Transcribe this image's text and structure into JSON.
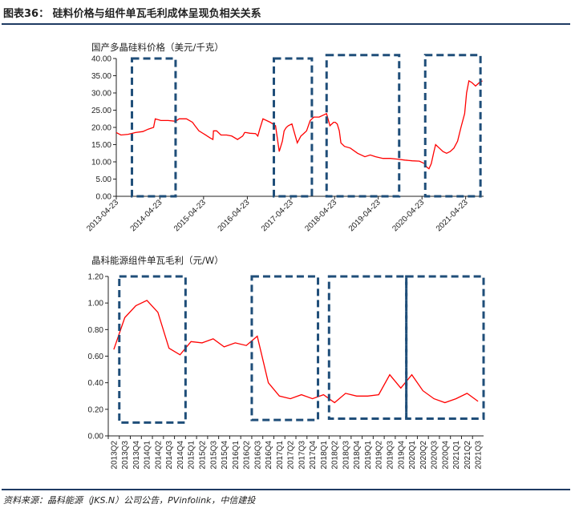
{
  "figure": {
    "title": "图表36：  硅料价格与组件单瓦毛利成体呈现负相关关系",
    "source": "资料来源：晶科能源（JKS.N）公司公告，PVinfolink，中信建投",
    "highlight_color": "#1f4e79",
    "line_color": "#ff0000"
  },
  "chart_data": [
    {
      "type": "line",
      "title": "国产多晶硅料价格（美元/千克）",
      "ylim": [
        0,
        40
      ],
      "y_ticks": [
        "0.00",
        "5.00",
        "10.00",
        "15.00",
        "20.00",
        "25.00",
        "30.00",
        "35.00",
        "40.00"
      ],
      "x_ticks": [
        "2013-04-23",
        "2014-04-23",
        "2015-04-23",
        "2016-04-23",
        "2017-04-23",
        "2018-04-23",
        "2019-04-23",
        "2020-04-23",
        "2021-04-23"
      ],
      "series": [
        {
          "x": [
            "2013-04-23",
            "2013-06-01",
            "2013-08-01",
            "2013-10-01",
            "2013-12-01",
            "2014-01-15",
            "2014-03-01",
            "2014-03-15",
            "2014-05-01",
            "2014-07-01",
            "2014-09-01",
            "2014-10-01",
            "2014-12-01",
            "2015-01-20",
            "2015-02-10",
            "2015-03-15",
            "2015-05-01",
            "2015-06-15",
            "2015-07-10",
            "2015-07-15",
            "2015-08-10",
            "2015-09-15",
            "2015-11-01",
            "2015-12-15",
            "2016-02-01",
            "2016-03-15",
            "2016-04-01",
            "2016-04-10",
            "2016-05-15",
            "2016-07-01",
            "2016-07-20",
            "2016-08-05",
            "2016-09-01",
            "2016-11-01",
            "2016-12-15",
            "2017-01-15",
            "2017-02-10",
            "2017-02-25",
            "2017-03-15",
            "2017-04-01",
            "2017-05-01",
            "2017-06-15",
            "2017-07-15",
            "2017-08-01",
            "2017-09-01",
            "2017-10-01",
            "2017-11-01",
            "2017-12-15",
            "2018-01-15",
            "2018-02-15",
            "2018-03-15",
            "2018-04-15",
            "2018-04-28",
            "2018-05-15",
            "2018-06-01",
            "2018-06-15",
            "2018-07-15",
            "2018-09-01",
            "2018-11-01",
            "2019-01-01",
            "2019-02-15",
            "2019-04-01",
            "2019-06-01",
            "2019-08-01",
            "2019-10-01",
            "2019-12-01",
            "2020-02-01",
            "2020-04-01",
            "2020-05-15",
            "2020-06-01",
            "2020-06-20",
            "2020-07-10",
            "2020-08-01",
            "2020-08-15",
            "2020-09-15",
            "2020-10-15",
            "2020-11-15",
            "2020-12-15",
            "2021-01-15",
            "2021-02-15",
            "2021-03-15",
            "2021-04-15",
            "2021-05-01",
            "2021-05-20",
            "2021-06-15",
            "2021-07-15",
            "2021-08-15",
            "2021-09-10"
          ],
          "y": [
            18.5,
            17.8,
            18.0,
            18.5,
            18.8,
            19.5,
            20.0,
            22.5,
            22.0,
            22.0,
            21.8,
            22.5,
            22.5,
            21.5,
            20.5,
            19.0,
            18.0,
            17.0,
            16.5,
            19.0,
            19.0,
            17.8,
            17.8,
            17.5,
            16.5,
            17.5,
            18.5,
            18.5,
            18.3,
            18.2,
            17.5,
            19.5,
            22.5,
            21.5,
            20.5,
            13.0,
            16.0,
            19.0,
            20.0,
            20.5,
            21.0,
            15.5,
            17.5,
            18.0,
            19.0,
            22.0,
            23.0,
            23.0,
            23.5,
            24.0,
            20.5,
            21.5,
            21.5,
            21.0,
            19.0,
            15.5,
            14.5,
            14.0,
            12.5,
            11.5,
            12.0,
            11.5,
            11.0,
            11.0,
            10.8,
            10.5,
            10.3,
            10.2,
            9.5,
            8.5,
            8.0,
            9.5,
            13.0,
            15.0,
            14.0,
            13.0,
            12.5,
            13.0,
            14.0,
            16.0,
            20.0,
            24.0,
            30.0,
            33.5,
            33.0,
            32.0,
            33.0,
            33.5
          ]
        }
      ],
      "highlight_boxes": [
        {
          "x": [
            "2013-09-01",
            "2014-09-01"
          ],
          "y": [
            0,
            40
          ]
        },
        {
          "x": [
            "2016-12-01",
            "2017-10-15"
          ],
          "y": [
            0,
            40
          ]
        },
        {
          "x": [
            "2018-02-15",
            "2019-10-15"
          ],
          "y": [
            0,
            41
          ]
        },
        {
          "x": [
            "2020-05-20",
            "2021-08-25"
          ],
          "y": [
            0,
            41
          ]
        }
      ]
    },
    {
      "type": "line",
      "title": "晶科能源组件单瓦毛利（元/W）",
      "ylim": [
        0,
        1.2
      ],
      "y_ticks": [
        "0.00",
        "0.20",
        "0.40",
        "0.60",
        "0.80",
        "1.00",
        "1.20"
      ],
      "categories": [
        "2013Q2",
        "2013Q3",
        "2013Q4",
        "2014Q1",
        "2014Q2",
        "2014Q3",
        "2014Q4",
        "2015Q1",
        "2015Q2",
        "2015Q3",
        "2015Q4",
        "2016Q1",
        "2016Q2",
        "2016Q3",
        "2016Q4",
        "2017Q1",
        "2017Q2",
        "2017Q3",
        "2017Q4",
        "2018Q1",
        "2018Q2",
        "2018Q3",
        "2018Q4",
        "2019Q1",
        "2019Q2",
        "2019Q3",
        "2019Q4",
        "2020Q1",
        "2020Q2",
        "2020Q3",
        "2020Q4",
        "2021Q1",
        "2021Q2",
        "2021Q3"
      ],
      "series": [
        {
          "values": [
            0.65,
            0.89,
            0.98,
            1.02,
            0.93,
            0.66,
            0.61,
            0.71,
            0.7,
            0.73,
            0.67,
            0.7,
            0.68,
            0.75,
            0.4,
            0.3,
            0.28,
            0.31,
            0.28,
            0.31,
            0.25,
            0.32,
            0.3,
            0.3,
            0.31,
            0.46,
            0.36,
            0.46,
            0.34,
            0.28,
            0.25,
            0.28,
            0.32,
            0.26
          ]
        }
      ],
      "highlight_boxes": [
        {
          "cats": [
            "2013Q3",
            "2014Q4"
          ],
          "y": [
            0.1,
            1.2
          ]
        },
        {
          "cats": [
            "2016Q3",
            "2017Q4"
          ],
          "y": [
            0.12,
            1.2
          ]
        },
        {
          "cats": [
            "2018Q2",
            "2019Q4"
          ],
          "y": [
            0.13,
            1.2
          ]
        },
        {
          "cats": [
            "2020Q1",
            "2021Q3"
          ],
          "y": [
            0.13,
            1.2
          ]
        }
      ]
    }
  ]
}
